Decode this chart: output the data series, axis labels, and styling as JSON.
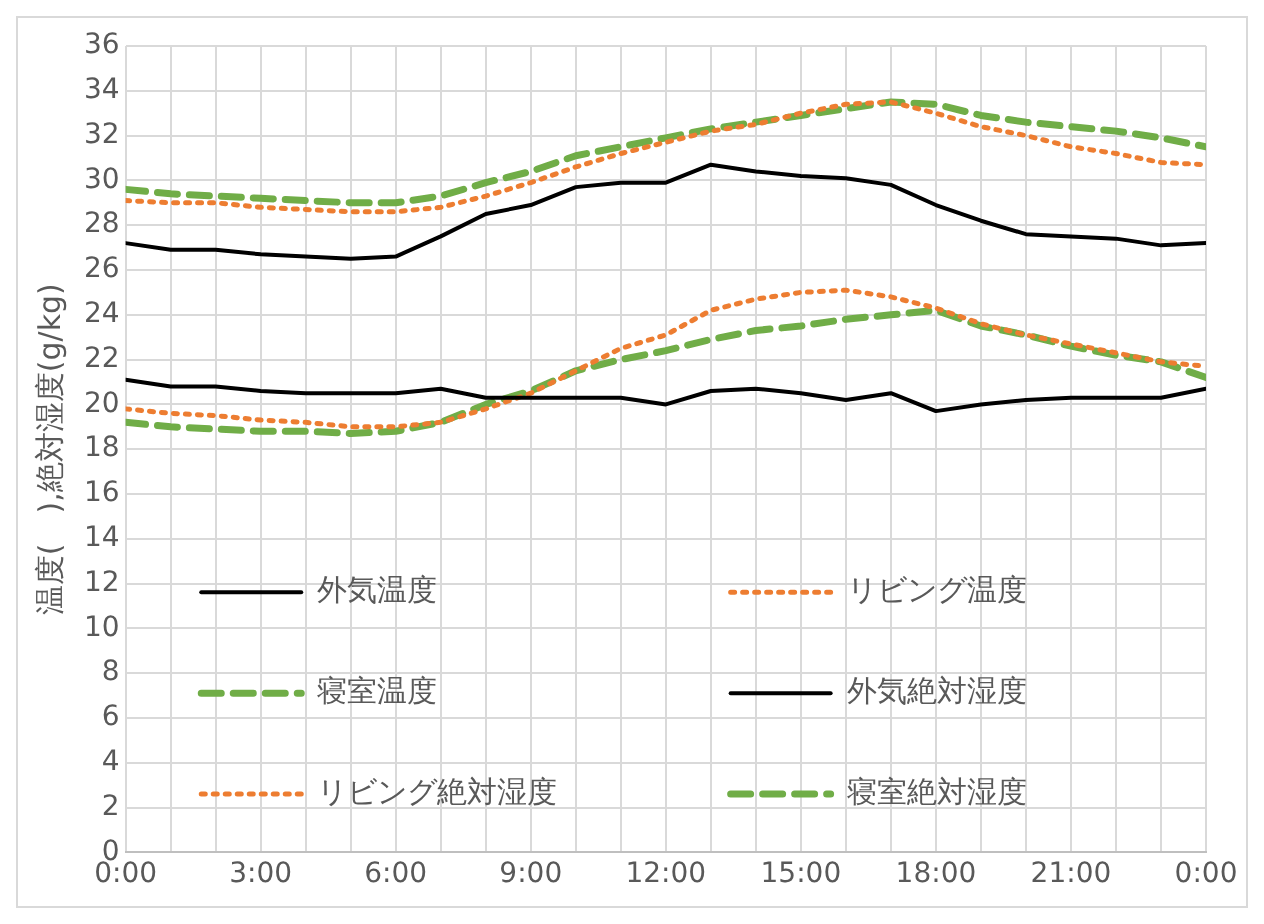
{
  "chart_data": {
    "type": "line",
    "ylabel": "温度(　),絶対湿度(g/kg)",
    "x": [
      0,
      1,
      2,
      3,
      4,
      5,
      6,
      7,
      8,
      9,
      10,
      11,
      12,
      13,
      14,
      15,
      16,
      17,
      18,
      19,
      20,
      21,
      22,
      23,
      24
    ],
    "xlim": [
      0,
      24
    ],
    "xticks": [
      {
        "value": 0,
        "label": "0:00"
      },
      {
        "value": 1,
        "label": null
      },
      {
        "value": 2,
        "label": null
      },
      {
        "value": 3,
        "label": "3:00"
      },
      {
        "value": 4,
        "label": null
      },
      {
        "value": 5,
        "label": null
      },
      {
        "value": 6,
        "label": "6:00"
      },
      {
        "value": 7,
        "label": null
      },
      {
        "value": 8,
        "label": null
      },
      {
        "value": 9,
        "label": "9:00"
      },
      {
        "value": 10,
        "label": null
      },
      {
        "value": 11,
        "label": null
      },
      {
        "value": 12,
        "label": "12:00"
      },
      {
        "value": 13,
        "label": null
      },
      {
        "value": 14,
        "label": null
      },
      {
        "value": 15,
        "label": "15:00"
      },
      {
        "value": 16,
        "label": null
      },
      {
        "value": 17,
        "label": null
      },
      {
        "value": 18,
        "label": "18:00"
      },
      {
        "value": 19,
        "label": null
      },
      {
        "value": 20,
        "label": null
      },
      {
        "value": 21,
        "label": "21:00"
      },
      {
        "value": 22,
        "label": null
      },
      {
        "value": 23,
        "label": null
      },
      {
        "value": 24,
        "label": "0:00"
      }
    ],
    "ylim": [
      0,
      36
    ],
    "yticks": [
      0,
      2,
      4,
      6,
      8,
      10,
      12,
      14,
      16,
      18,
      20,
      22,
      24,
      26,
      28,
      30,
      32,
      34,
      36
    ],
    "grid": true,
    "legend": "bottom",
    "marker": "none",
    "series": [
      {
        "name": "外気温度",
        "color": "#000000",
        "line_style": "solid",
        "values": [
          27.2,
          26.9,
          26.9,
          26.7,
          26.6,
          26.5,
          26.6,
          27.5,
          28.5,
          28.9,
          29.7,
          29.9,
          29.9,
          30.7,
          30.4,
          30.2,
          30.1,
          29.8,
          28.9,
          28.2,
          27.6,
          27.5,
          27.4,
          27.1,
          27.2
        ]
      },
      {
        "name": "リビング温度",
        "color": "#ed7d31",
        "line_style": "dotted",
        "values": [
          29.1,
          29.0,
          29.0,
          28.8,
          28.7,
          28.6,
          28.6,
          28.8,
          29.3,
          29.9,
          30.6,
          31.2,
          31.7,
          32.2,
          32.5,
          33.0,
          33.4,
          33.5,
          33.0,
          32.4,
          32.0,
          31.5,
          31.2,
          30.8,
          30.7
        ]
      },
      {
        "name": "寝室温度",
        "color": "#70ad47",
        "line_style": "dashed",
        "values": [
          29.6,
          29.4,
          29.3,
          29.2,
          29.1,
          29.0,
          29.0,
          29.3,
          29.9,
          30.4,
          31.1,
          31.5,
          31.9,
          32.3,
          32.6,
          32.9,
          33.2,
          33.5,
          33.4,
          32.9,
          32.6,
          32.4,
          32.2,
          31.9,
          31.5
        ]
      },
      {
        "name": "外気絶対湿度",
        "color": "#000000",
        "line_style": "solid",
        "values": [
          21.1,
          20.8,
          20.8,
          20.6,
          20.5,
          20.5,
          20.5,
          20.7,
          20.3,
          20.3,
          20.3,
          20.3,
          20.0,
          20.6,
          20.7,
          20.5,
          20.2,
          20.5,
          19.7,
          20.0,
          20.2,
          20.3,
          20.3,
          20.3,
          20.7
        ]
      },
      {
        "name": "リビング絶対湿度",
        "color": "#ed7d31",
        "line_style": "dotted",
        "values": [
          19.8,
          19.6,
          19.5,
          19.3,
          19.2,
          19.0,
          19.0,
          19.2,
          19.8,
          20.5,
          21.5,
          22.5,
          23.1,
          24.2,
          24.7,
          25.0,
          25.1,
          24.8,
          24.3,
          23.6,
          23.1,
          22.7,
          22.3,
          21.9,
          21.7
        ]
      },
      {
        "name": "寝室絶対湿度",
        "color": "#70ad47",
        "line_style": "dashed",
        "values": [
          19.2,
          19.0,
          18.9,
          18.8,
          18.8,
          18.7,
          18.8,
          19.2,
          20.0,
          20.6,
          21.5,
          22.0,
          22.4,
          22.9,
          23.3,
          23.5,
          23.8,
          24.0,
          24.2,
          23.5,
          23.1,
          22.6,
          22.2,
          21.9,
          21.2
        ]
      }
    ]
  }
}
